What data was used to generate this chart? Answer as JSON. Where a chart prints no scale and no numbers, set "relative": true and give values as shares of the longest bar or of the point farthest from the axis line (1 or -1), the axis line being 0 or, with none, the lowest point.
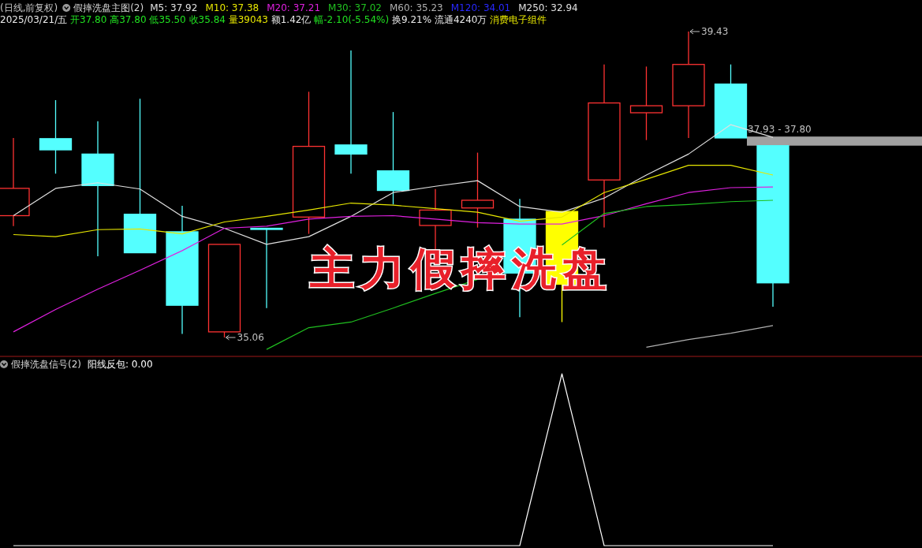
{
  "chart_data": [
    {
      "type": "candlestick",
      "title": "假摔洗盘主图(2)",
      "subtitle": "(日线,前复权)",
      "annotations": [
        "39.43",
        "35.06",
        "2025/03/21/五 开37.80 高37.80 低35.50 收35.84 量39043 额1.42亿 幅-2.10(-5.54%) 换9.21% 流通4240万 消费电子组件",
        "主力假摔洗盘"
      ],
      "categories": [
        null,
        null,
        null,
        null,
        null,
        null,
        null,
        null,
        null,
        null,
        null,
        null,
        null,
        null,
        null,
        null,
        null,
        null,
        null
      ],
      "legend": "top",
      "ohlc": [
        [
          36.8,
          37.91,
          36.65,
          37.19
        ],
        [
          37.9,
          38.45,
          37.4,
          37.74
        ],
        [
          37.68,
          38.15,
          36.22,
          37.23
        ],
        [
          36.82,
          38.47,
          36.27,
          36.27
        ],
        [
          36.57,
          36.94,
          35.11,
          35.52
        ],
        [
          35.14,
          36.39,
          35.06,
          36.39
        ],
        [
          36.62,
          36.62,
          35.48,
          36.61
        ],
        [
          36.78,
          38.57,
          36.54,
          37.79
        ],
        [
          37.81,
          39.16,
          37.4,
          37.68
        ],
        [
          37.44,
          38.28,
          36.96,
          37.16
        ],
        [
          36.66,
          37.18,
          36.32,
          36.88
        ],
        [
          36.91,
          37.7,
          36.63,
          37.02
        ],
        [
          36.75,
          37.04,
          35.35,
          35.98
        ],
        [
          35.82,
          36.86,
          35.28,
          36.86
        ],
        [
          37.31,
          38.96,
          36.63,
          38.41
        ],
        [
          38.27,
          38.93,
          37.88,
          38.37
        ],
        [
          38.37,
          39.43,
          37.91,
          38.96
        ],
        [
          38.68,
          38.96,
          37.91,
          37.91
        ],
        [
          37.8,
          37.8,
          35.5,
          35.84
        ]
      ],
      "colors": [
        "#ff3232",
        "#54ffff",
        "#54ffff",
        "#54ffff",
        "#54ffff",
        "#ff3232",
        "#54ffff",
        "#ff3232",
        "#54ffff",
        "#54ffff",
        "#ff3232",
        "#ff3232",
        "#54ffff",
        "#ffff00",
        "#ff3232",
        "#ff3232",
        "#ff3232",
        "#54ffff",
        "#54ffff"
      ],
      "bands": [
        {
          "axis": "y",
          "from": 37.8,
          "to": 37.93,
          "label": "37.93 - 37.80",
          "color": "#a0a0a0"
        }
      ],
      "series": [
        {
          "type": "line",
          "name": "M5: 37.92",
          "color": "#e0e0e0",
          "values": [
            36.8,
            37.19,
            37.27,
            37.18,
            36.79,
            36.62,
            36.39,
            36.5,
            36.79,
            37.13,
            37.22,
            37.3,
            36.93,
            36.85,
            37.05,
            37.38,
            37.68,
            38.1,
            37.92
          ]
        },
        {
          "type": "line",
          "name": "M10: 37.38",
          "color": "#e6e600",
          "values": [
            36.53,
            36.5,
            36.6,
            36.61,
            36.54,
            36.71,
            36.79,
            36.88,
            36.98,
            36.95,
            36.9,
            36.85,
            36.72,
            36.78,
            37.13,
            37.32,
            37.52,
            37.52,
            37.38
          ]
        },
        {
          "type": "line",
          "name": "M20: 37.21",
          "color": "#e020e0",
          "values": [
            35.14,
            35.46,
            35.75,
            36.02,
            36.3,
            36.62,
            36.65,
            36.75,
            36.79,
            36.8,
            36.75,
            36.7,
            36.68,
            36.68,
            36.8,
            36.97,
            37.13,
            37.2,
            37.21
          ]
        },
        {
          "type": "line",
          "name": "M30: 37.02",
          "color": "#20c020",
          "values": [
            null,
            null,
            null,
            null,
            null,
            null,
            34.89,
            35.2,
            35.28,
            35.48,
            35.69,
            35.89,
            null,
            36.38,
            36.83,
            36.93,
            36.96,
            37.0,
            37.02
          ]
        },
        {
          "type": "line",
          "name": "M60: 35.23",
          "color": "#b0b0b0",
          "values": [
            null,
            null,
            null,
            null,
            null,
            null,
            null,
            null,
            null,
            null,
            null,
            null,
            null,
            null,
            null,
            34.92,
            35.03,
            35.12,
            35.23
          ]
        },
        {
          "type": "line",
          "name": "M120: 34.01",
          "color": "#2828ff",
          "values": [
            null,
            null,
            null,
            null,
            null,
            null,
            null,
            null,
            null,
            null,
            null,
            null,
            null,
            null,
            null,
            null,
            null,
            null,
            null
          ]
        },
        {
          "type": "line",
          "name": "M250: 32.94",
          "color": "#e0e0e0",
          "values": [
            null,
            null,
            null,
            null,
            null,
            null,
            null,
            null,
            null,
            null,
            null,
            null,
            null,
            null,
            null,
            null,
            null,
            null,
            null
          ]
        }
      ]
    },
    {
      "type": "line",
      "title": "假摔洗盘信号(2)",
      "relative": true,
      "legend": "top left",
      "categories": [
        null,
        null,
        null,
        null,
        null,
        null,
        null,
        null,
        null,
        null,
        null,
        null,
        null,
        null,
        null,
        null,
        null,
        null,
        null
      ],
      "series": [
        {
          "name": "阳线反包: 0.00",
          "color": "#ffffff",
          "values": [
            0,
            0,
            0,
            0,
            0,
            0,
            0,
            0,
            0,
            0,
            0,
            0,
            0,
            1,
            0,
            0,
            0,
            0,
            0
          ]
        }
      ]
    }
  ]
}
